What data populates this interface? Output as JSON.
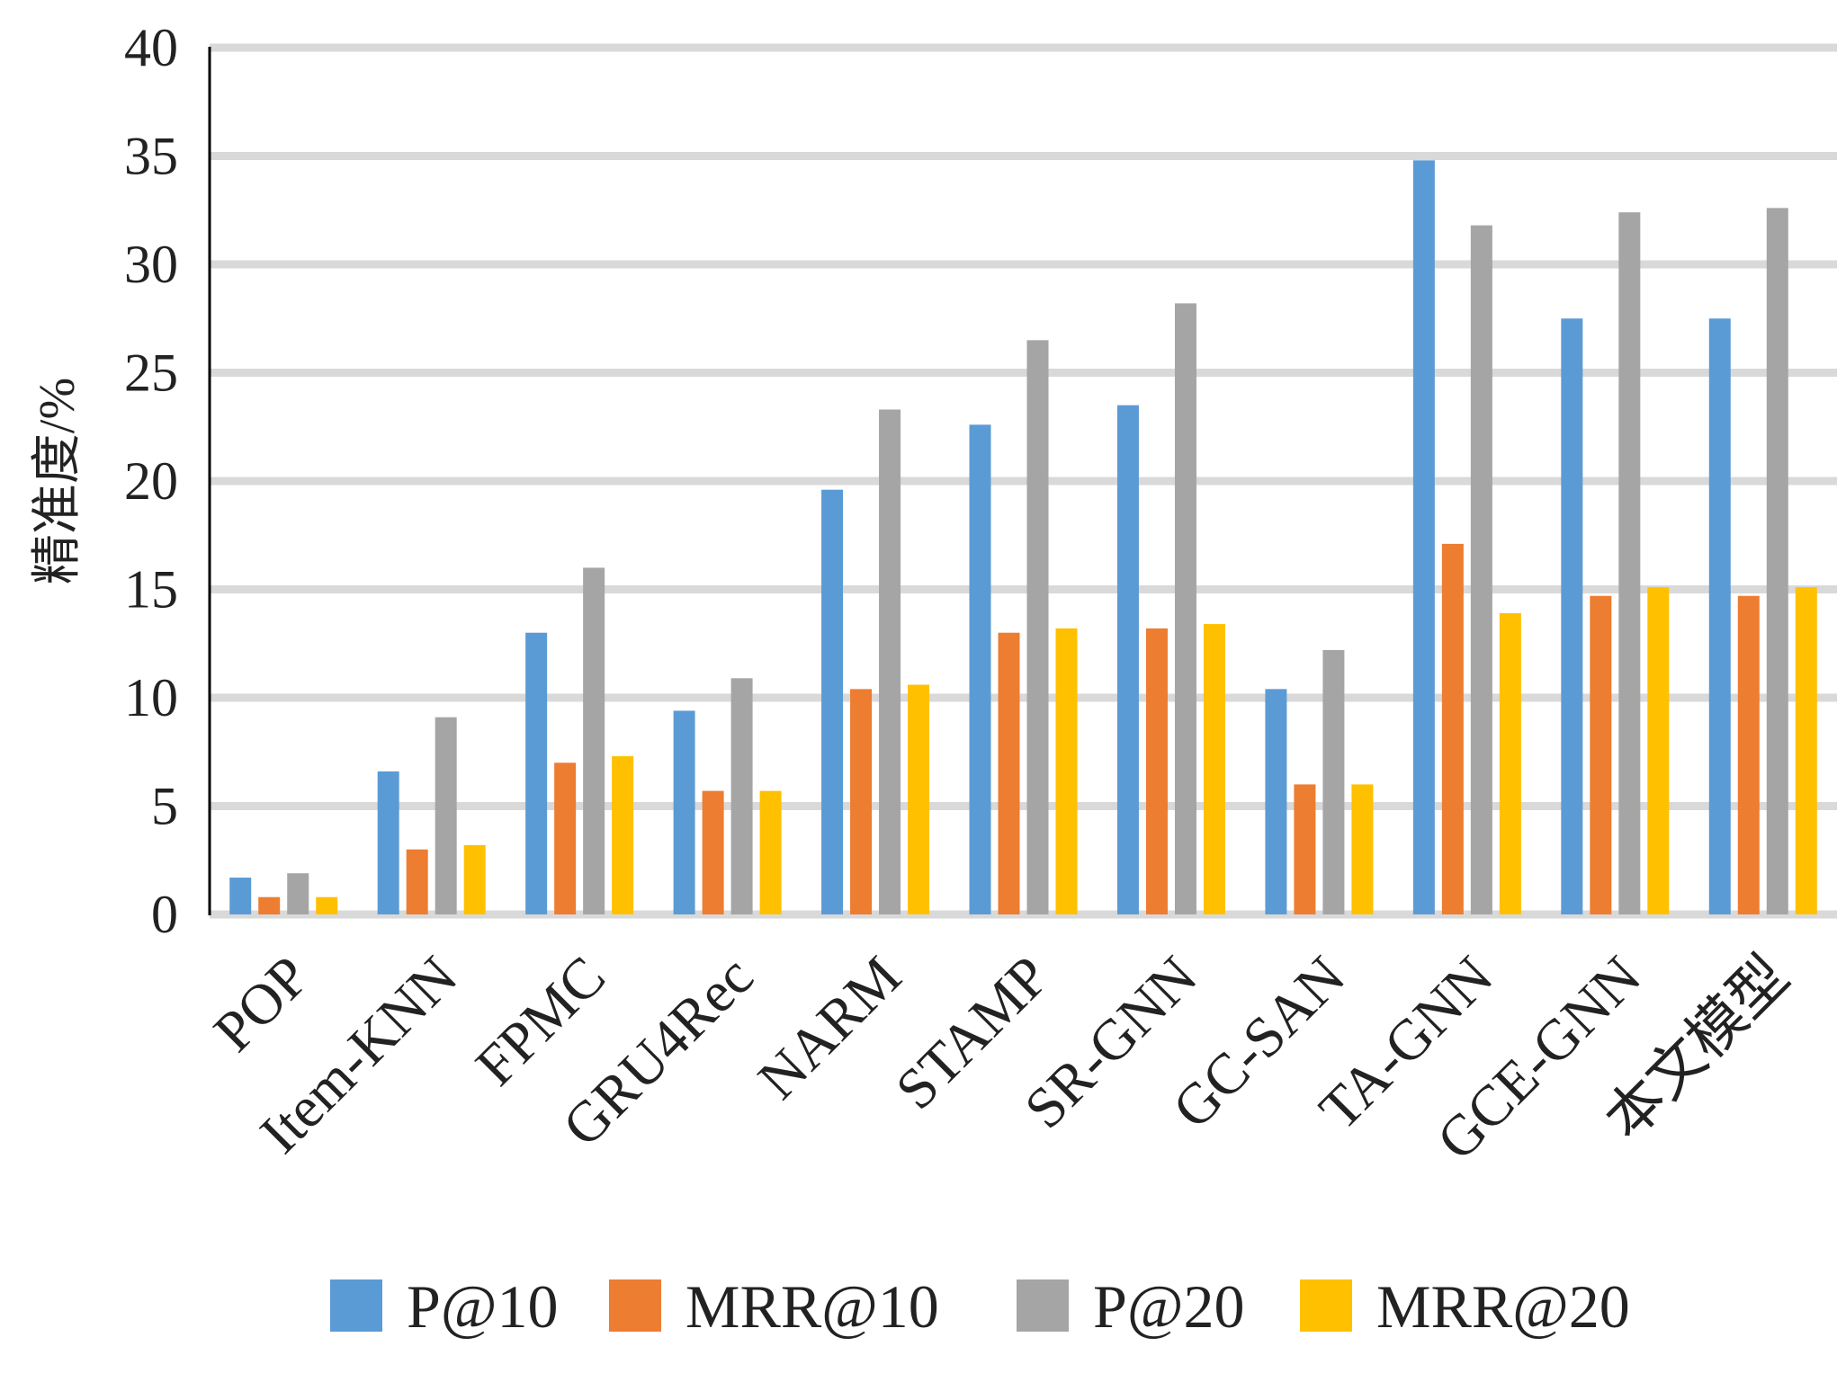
{
  "chart_data": {
    "type": "bar",
    "title": "",
    "xlabel": "",
    "ylabel": "精准度/%",
    "ylim": [
      0,
      40
    ],
    "yticks": [
      0,
      5,
      10,
      15,
      20,
      25,
      30,
      35,
      40
    ],
    "grid": true,
    "legend_position": "bottom",
    "categories": [
      "POP",
      "Item-KNN",
      "FPMC",
      "GRU4Rec",
      "NARM",
      "STAMP",
      "SR-GNN",
      "GC-SAN",
      "TA-GNN",
      "GCE-GNN",
      "本文模型"
    ],
    "series": [
      {
        "name": "P@10",
        "color": "#5B9BD5",
        "values": [
          1.7,
          6.6,
          13.0,
          9.4,
          19.6,
          22.6,
          23.5,
          10.4,
          34.8,
          27.5,
          27.5
        ]
      },
      {
        "name": "MRR@10",
        "color": "#ED7D31",
        "values": [
          0.8,
          3.0,
          7.0,
          5.7,
          10.4,
          13.0,
          13.2,
          6.0,
          17.1,
          14.7,
          14.7
        ]
      },
      {
        "name": "P@20",
        "color": "#A5A5A5",
        "values": [
          1.9,
          9.1,
          16.0,
          10.9,
          23.3,
          26.5,
          28.2,
          12.2,
          31.8,
          32.4,
          32.6
        ]
      },
      {
        "name": "MRR@20",
        "color": "#FFC000",
        "values": [
          0.8,
          3.2,
          7.3,
          5.7,
          10.6,
          13.2,
          13.4,
          6.0,
          13.9,
          15.1,
          15.1
        ]
      }
    ]
  }
}
